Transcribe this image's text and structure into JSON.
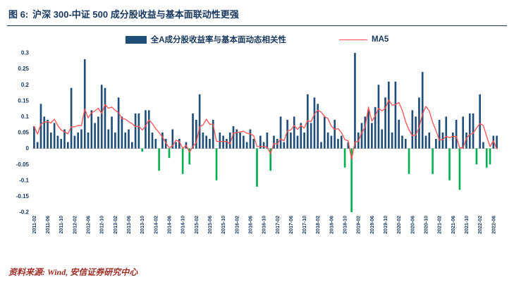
{
  "page": {
    "title_prefix": "图 6:",
    "title": "沪深 300-中证 500 成分股收益与基本面联动性更强",
    "source": "资料来源: Wind, 安信证券研究中心"
  },
  "legend": {
    "bars_label": "全A成分股收益率与基本面动态相关性",
    "line_label": "MA5"
  },
  "colors": {
    "title": "#17375E",
    "axis_text": "#17375E",
    "bar_positive": "#1F4E79",
    "bar_negative": "#00B050",
    "ma5_line": "#FF5050",
    "zero_line": "#BFBFBF",
    "source_text": "#A03028"
  },
  "chart_data": {
    "type": "bar",
    "title": "",
    "xlabel": "",
    "ylabel": "",
    "ylim": [
      -0.2,
      0.3
    ],
    "ytick_step": 0.05,
    "yticks": [
      "0.3",
      "0.25",
      "0.2",
      "0.15",
      "0.1",
      "0.05",
      "0",
      "-0.05",
      "-0.1",
      "-0.15",
      "-0.2"
    ],
    "xtick_every": 4,
    "legend_position": "top-center",
    "grid": false,
    "x": [
      "2011-02",
      "2011-03",
      "2011-04",
      "2011-05",
      "2011-06",
      "2011-07",
      "2011-08",
      "2011-09",
      "2011-10",
      "2011-11",
      "2011-12",
      "2012-01",
      "2012-02",
      "2012-03",
      "2012-04",
      "2012-05",
      "2012-06",
      "2012-07",
      "2012-08",
      "2012-09",
      "2012-10",
      "2012-11",
      "2012-12",
      "2013-01",
      "2013-02",
      "2013-03",
      "2013-04",
      "2013-05",
      "2013-06",
      "2013-07",
      "2013-08",
      "2013-09",
      "2013-10",
      "2013-11",
      "2013-12",
      "2014-01",
      "2014-02",
      "2014-03",
      "2014-04",
      "2014-05",
      "2014-06",
      "2014-07",
      "2014-08",
      "2014-09",
      "2014-10",
      "2014-11",
      "2014-12",
      "2015-01",
      "2015-02",
      "2015-03",
      "2015-04",
      "2015-05",
      "2015-06",
      "2015-07",
      "2015-08",
      "2015-09",
      "2015-10",
      "2015-11",
      "2015-12",
      "2016-01",
      "2016-02",
      "2016-03",
      "2016-04",
      "2016-05",
      "2016-06",
      "2016-07",
      "2016-08",
      "2016-09",
      "2016-10",
      "2016-11",
      "2016-12",
      "2017-01",
      "2017-02",
      "2017-03",
      "2017-04",
      "2017-05",
      "2017-06",
      "2017-07",
      "2017-08",
      "2017-09",
      "2017-10",
      "2017-11",
      "2017-12",
      "2018-01",
      "2018-02",
      "2018-03",
      "2018-04",
      "2018-05",
      "2018-06",
      "2018-07",
      "2018-08",
      "2018-09",
      "2018-10",
      "2018-11",
      "2018-12",
      "2019-01",
      "2019-02",
      "2019-03",
      "2019-04",
      "2019-05",
      "2019-06",
      "2019-07",
      "2019-08",
      "2019-09",
      "2019-10",
      "2019-11",
      "2019-12",
      "2020-01",
      "2020-02",
      "2020-03",
      "2020-04",
      "2020-05",
      "2020-06",
      "2020-07",
      "2020-08",
      "2020-09",
      "2020-10",
      "2020-11",
      "2020-12",
      "2021-01",
      "2021-02",
      "2021-03",
      "2021-04",
      "2021-05",
      "2021-06",
      "2021-07",
      "2021-08",
      "2021-09",
      "2021-10",
      "2021-11",
      "2021-12",
      "2022-01",
      "2022-02",
      "2022-03",
      "2022-04",
      "2022-05",
      "2022-06",
      "2022-07"
    ],
    "series": [
      {
        "name": "全A成分股收益率与基本面动态相关性",
        "type": "bar",
        "values": [
          0.07,
          0.02,
          0.14,
          0.1,
          0.09,
          0.05,
          0.08,
          0.04,
          0.03,
          0.06,
          0.02,
          0.19,
          0.04,
          0.05,
          0.06,
          0.28,
          0.05,
          0.12,
          0.08,
          0.1,
          0.2,
          0.19,
          0.06,
          0.1,
          0.05,
          0.16,
          0.1,
          0.05,
          0.06,
          0.02,
          0.11,
          0.11,
          -0.01,
          0.12,
          0.12,
          0.05,
          0.03,
          -0.07,
          0.05,
          0.03,
          -0.03,
          0.06,
          0.02,
          0.03,
          -0.08,
          0.02,
          -0.05,
          0.11,
          0.09,
          0.17,
          0.05,
          0.04,
          0.03,
          0.09,
          -0.1,
          0.05,
          0.04,
          0.03,
          0.05,
          0.07,
          0.06,
          0.05,
          0.04,
          0.02,
          0.06,
          0.03,
          -0.12,
          0.04,
          0.02,
          0.05,
          -0.07,
          0.04,
          0.03,
          0.1,
          0.02,
          0.09,
          0.05,
          0.1,
          0.04,
          0.08,
          0.05,
          0.17,
          0.08,
          0.16,
          0.14,
          0.02,
          0.1,
          0.05,
          0.04,
          0.09,
          0.03,
          0.04,
          -0.06,
          0.02,
          -0.2,
          0.3,
          0.05,
          0.08,
          0.1,
          0.12,
          0.08,
          0.13,
          0.2,
          0.06,
          0.16,
          0.21,
          0.05,
          0.21,
          0.09,
          0.04,
          0.03,
          -0.08,
          0.12,
          0.1,
          0.16,
          0.24,
          0.04,
          0.05,
          -0.08,
          0.03,
          0.09,
          0.05,
          0.1,
          -0.1,
          0.05,
          0.09,
          -0.13,
          0.1,
          0.05,
          0.11,
          0.11,
          -0.05,
          0.17,
          0.02,
          -0.06,
          -0.05,
          0.04,
          0.04
        ]
      },
      {
        "name": "MA5",
        "type": "line",
        "derived": "moving_average_5_of_bar_series"
      }
    ]
  }
}
